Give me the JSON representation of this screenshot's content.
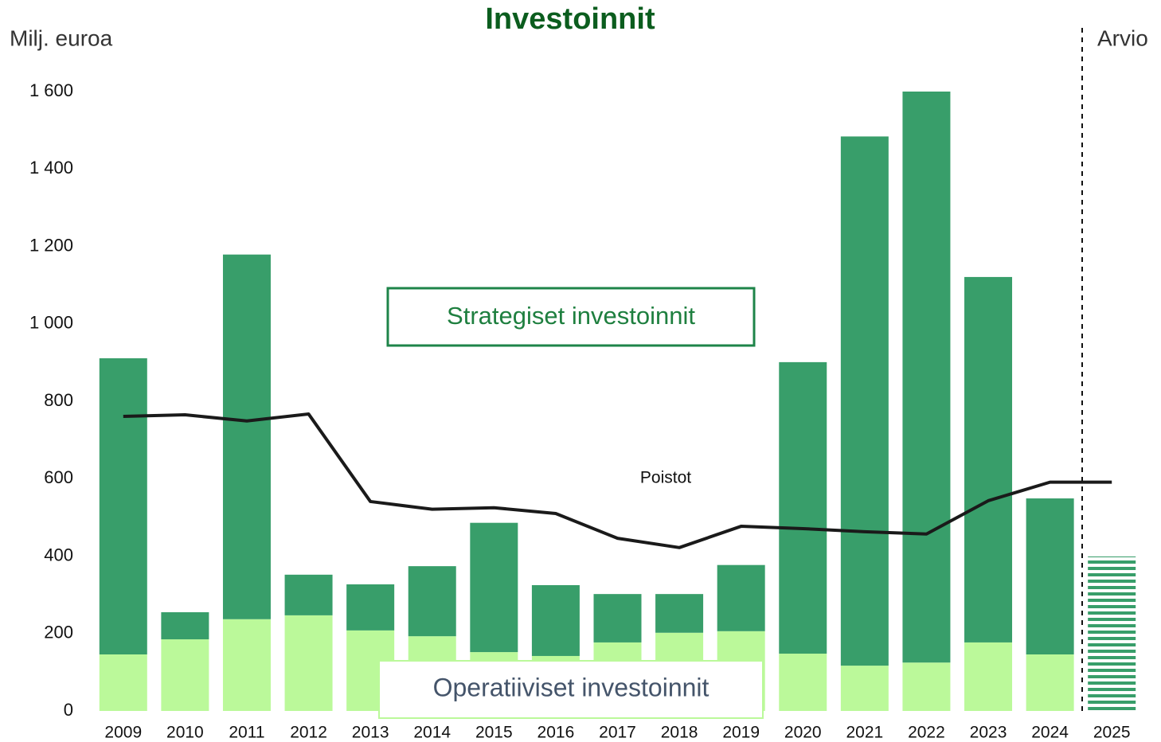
{
  "chart_data": {
    "type": "bar",
    "title": "Investoinnit",
    "y_label": "Milj. euroa",
    "stacked": true,
    "categories": [
      "2009",
      "2010",
      "2011",
      "2012",
      "2013",
      "2014",
      "2015",
      "2016",
      "2017",
      "2018",
      "2019",
      "2020",
      "2021",
      "2022",
      "2023",
      "2024",
      "2025"
    ],
    "series": [
      {
        "name": "Operatiiviset investoinnit",
        "color": "#bbf99a",
        "values": [
          146,
          185,
          237,
          247,
          208,
          193,
          152,
          142,
          177,
          202,
          206,
          148,
          117,
          125,
          177,
          146,
          null
        ]
      },
      {
        "name": "Strategiset investoinnit",
        "color": "#389e6a",
        "values": [
          765,
          70,
          942,
          105,
          119,
          181,
          334,
          183,
          125,
          100,
          171,
          753,
          1367,
          1475,
          944,
          403,
          null
        ]
      },
      {
        "name": "Arvio",
        "color": "#389e6a",
        "pattern": "horizontal-stripes",
        "values": [
          null,
          null,
          null,
          null,
          null,
          null,
          null,
          null,
          null,
          null,
          null,
          null,
          null,
          null,
          null,
          null,
          399
        ]
      },
      {
        "name": "Poistot",
        "type": "line",
        "color": "#1a1a1a",
        "values": [
          761,
          765,
          749,
          767,
          541,
          521,
          525,
          510,
          446,
          422,
          477,
          471,
          463,
          457,
          543,
          591,
          591
        ]
      }
    ],
    "ylim": [
      0,
      1600
    ],
    "yticks": [
      0,
      200,
      400,
      600,
      800,
      {
        "value": 1000,
        "label": "1 000"
      },
      {
        "value": 1200,
        "label": "1 200"
      },
      {
        "value": 1400,
        "label": "1 400"
      },
      {
        "value": 1600,
        "label": "1 600"
      }
    ],
    "grid": false
  }
}
